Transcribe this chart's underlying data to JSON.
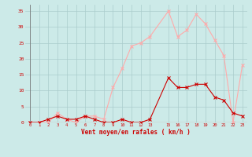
{
  "x_all": [
    0,
    1,
    2,
    3,
    4,
    5,
    6,
    7,
    8,
    9,
    10,
    11,
    12,
    13,
    15,
    16,
    17,
    18,
    19,
    20,
    21,
    22,
    23
  ],
  "wind_avg": [
    0,
    0,
    1,
    2,
    1,
    1,
    2,
    1,
    0,
    0,
    1,
    0,
    0,
    1,
    14,
    11,
    11,
    12,
    12,
    8,
    7,
    3,
    2
  ],
  "wind_gust": [
    0,
    0,
    0,
    3,
    1,
    0,
    2,
    2,
    1,
    11,
    17,
    24,
    25,
    27,
    35,
    27,
    29,
    34,
    31,
    26,
    21,
    0,
    18
  ],
  "bg_color": "#cceae8",
  "grid_color": "#aacccc",
  "avg_color": "#cc0000",
  "gust_color": "#ffaaaa",
  "xlabel": "Vent moyen/en rafales ( km/h )",
  "xlabel_color": "#cc0000",
  "ytick_labels": [
    "0",
    "5",
    "10",
    "15",
    "20",
    "25",
    "30",
    "35"
  ],
  "ytick_vals": [
    0,
    5,
    10,
    15,
    20,
    25,
    30,
    35
  ],
  "xlim": [
    -0.5,
    23.5
  ],
  "ylim": [
    0,
    37
  ]
}
